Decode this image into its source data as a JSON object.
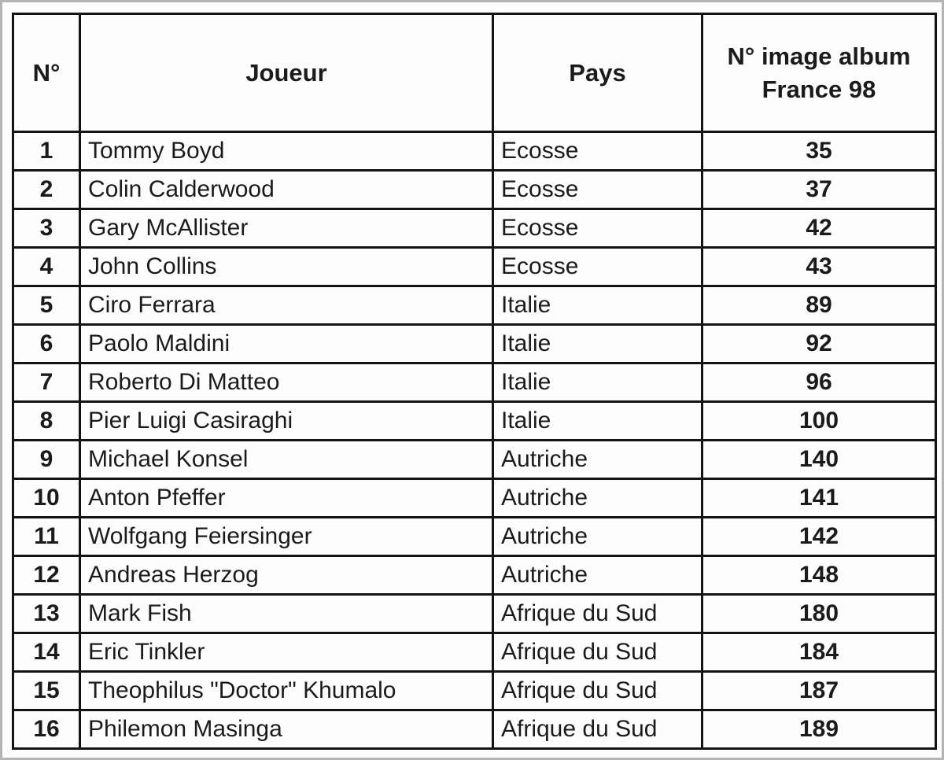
{
  "page": {
    "background": "#fdfdfd",
    "frame_color": "#b4b4b4",
    "grid_color": "#141414",
    "text_color": "#1b1b1b"
  },
  "table": {
    "headers": [
      {
        "id": "num",
        "label": "N°"
      },
      {
        "id": "player",
        "label": "Joueur"
      },
      {
        "id": "country",
        "label": "Pays"
      },
      {
        "id": "album",
        "label": "N° image album",
        "label_line2": "France 98"
      }
    ],
    "rows": [
      {
        "num": "1",
        "player": "Tommy Boyd",
        "country": "Ecosse",
        "album": "35"
      },
      {
        "num": "2",
        "player": "Colin Calderwood",
        "country": "Ecosse",
        "album": "37"
      },
      {
        "num": "3",
        "player": "Gary McAllister",
        "country": "Ecosse",
        "album": "42"
      },
      {
        "num": "4",
        "player": "John Collins",
        "country": "Ecosse",
        "album": "43"
      },
      {
        "num": "5",
        "player": "Ciro Ferrara",
        "country": "Italie",
        "album": "89"
      },
      {
        "num": "6",
        "player": "Paolo Maldini",
        "country": "Italie",
        "album": "92"
      },
      {
        "num": "7",
        "player": "Roberto Di Matteo",
        "country": "Italie",
        "album": "96"
      },
      {
        "num": "8",
        "player": "Pier Luigi Casiraghi",
        "country": "Italie",
        "album": "100"
      },
      {
        "num": "9",
        "player": "Michael Konsel",
        "country": "Autriche",
        "album": "140"
      },
      {
        "num": "10",
        "player": "Anton Pfeffer",
        "country": "Autriche",
        "album": "141"
      },
      {
        "num": "11",
        "player": "Wolfgang Feiersinger",
        "country": "Autriche",
        "album": "142"
      },
      {
        "num": "12",
        "player": "Andreas Herzog",
        "country": "Autriche",
        "album": "148"
      },
      {
        "num": "13",
        "player": "Mark Fish",
        "country": "Afrique du Sud",
        "album": "180"
      },
      {
        "num": "14",
        "player": "Eric Tinkler",
        "country": "Afrique du Sud",
        "album": "184"
      },
      {
        "num": "15",
        "player": "Theophilus \"Doctor\" Khumalo",
        "country": "Afrique du Sud",
        "album": "187"
      },
      {
        "num": "16",
        "player": "Philemon Masinga",
        "country": "Afrique du Sud",
        "album": "189"
      }
    ]
  }
}
